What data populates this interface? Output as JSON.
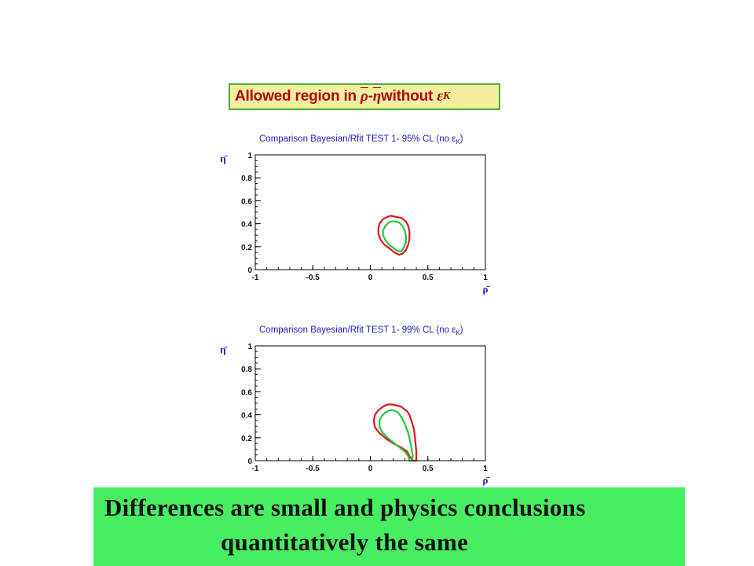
{
  "header": {
    "prefix": "Allowed region in ",
    "rho": "ρ",
    "dash": "-",
    "eta": "η",
    "middle": " without ",
    "epsilon": "ε",
    "subscript": "K"
  },
  "chart_data": [
    {
      "type": "line",
      "title": "Comparison Bayesian/Rfit TEST 1- 95% CL (no ε",
      "title_subscript": "K",
      "title_close": ")",
      "xlabel": "ρ̄",
      "ylabel": "η̄",
      "xlim": [
        -1,
        1
      ],
      "ylim": [
        0,
        1
      ],
      "xticks": [
        "-1",
        "-0.5",
        "0",
        "0.5",
        "1"
      ],
      "yticks": [
        "0",
        "0.2",
        "0.4",
        "0.6",
        "0.8",
        "1"
      ],
      "grid": false,
      "series": [
        {
          "color": "#e0141e",
          "x": [
            0.22,
            0.27,
            0.31,
            0.33,
            0.34,
            0.34,
            0.33,
            0.31,
            0.28,
            0.25,
            0.21,
            0.16,
            0.12,
            0.09,
            0.07,
            0.07,
            0.08,
            0.11,
            0.15,
            0.18,
            0.22
          ],
          "y": [
            0.46,
            0.45,
            0.42,
            0.38,
            0.33,
            0.27,
            0.22,
            0.17,
            0.14,
            0.13,
            0.15,
            0.19,
            0.22,
            0.26,
            0.31,
            0.36,
            0.4,
            0.44,
            0.46,
            0.47,
            0.46
          ]
        },
        {
          "color": "#22c83a",
          "x": [
            0.21,
            0.25,
            0.28,
            0.3,
            0.31,
            0.31,
            0.29,
            0.27,
            0.24,
            0.2,
            0.16,
            0.13,
            0.11,
            0.11,
            0.13,
            0.16,
            0.18,
            0.21
          ],
          "y": [
            0.42,
            0.41,
            0.38,
            0.34,
            0.29,
            0.24,
            0.19,
            0.16,
            0.16,
            0.19,
            0.22,
            0.26,
            0.3,
            0.34,
            0.38,
            0.41,
            0.42,
            0.42
          ]
        }
      ]
    },
    {
      "type": "line",
      "title": "Comparison Bayesian/Rfit TEST 1- 99% CL (no ε",
      "title_subscript": "K",
      "title_close": ")",
      "xlabel": "ρ̄",
      "ylabel": "η̄",
      "xlim": [
        -1,
        1
      ],
      "ylim": [
        0,
        1
      ],
      "xticks": [
        "-1",
        "-0.5",
        "0",
        "0.5",
        "1"
      ],
      "yticks": [
        "0",
        "0.2",
        "0.4",
        "0.6",
        "0.8",
        "1"
      ],
      "grid": false,
      "series": [
        {
          "color": "#e0141e",
          "x": [
            0.28,
            0.32,
            0.34,
            0.36,
            0.38,
            0.39,
            0.4,
            0.4,
            0.37,
            0.34,
            0.32,
            0.29,
            0.26,
            0.2,
            0.14,
            0.08,
            0.04,
            0.03,
            0.04,
            0.07,
            0.11,
            0.15,
            0.19,
            0.23,
            0.27,
            0.28
          ],
          "y": [
            0.46,
            0.43,
            0.4,
            0.34,
            0.27,
            0.18,
            0.08,
            0.0,
            0.0,
            0.04,
            0.08,
            0.1,
            0.12,
            0.15,
            0.19,
            0.24,
            0.29,
            0.35,
            0.4,
            0.44,
            0.47,
            0.49,
            0.49,
            0.48,
            0.47,
            0.46
          ]
        },
        {
          "color": "#22c83a",
          "x": [
            0.2,
            0.24,
            0.27,
            0.3,
            0.33,
            0.35,
            0.37,
            0.36,
            0.34,
            0.33,
            0.3,
            0.26,
            0.21,
            0.15,
            0.1,
            0.08,
            0.08,
            0.1,
            0.13,
            0.17,
            0.2
          ],
          "y": [
            0.44,
            0.42,
            0.38,
            0.32,
            0.24,
            0.15,
            0.04,
            0.0,
            0.0,
            0.04,
            0.08,
            0.11,
            0.15,
            0.2,
            0.25,
            0.3,
            0.35,
            0.39,
            0.42,
            0.44,
            0.44
          ]
        }
      ]
    }
  ],
  "conclusion": {
    "line1": "Differences are small and physics conclusions",
    "line2": "quantitatively the same"
  },
  "colors": {
    "header_bg": "#f4ef9c",
    "header_border": "#4caf3c",
    "header_text": "#b3001b",
    "title_blue": "#1b1bc4",
    "conclusion_bg": "#48ee62"
  }
}
